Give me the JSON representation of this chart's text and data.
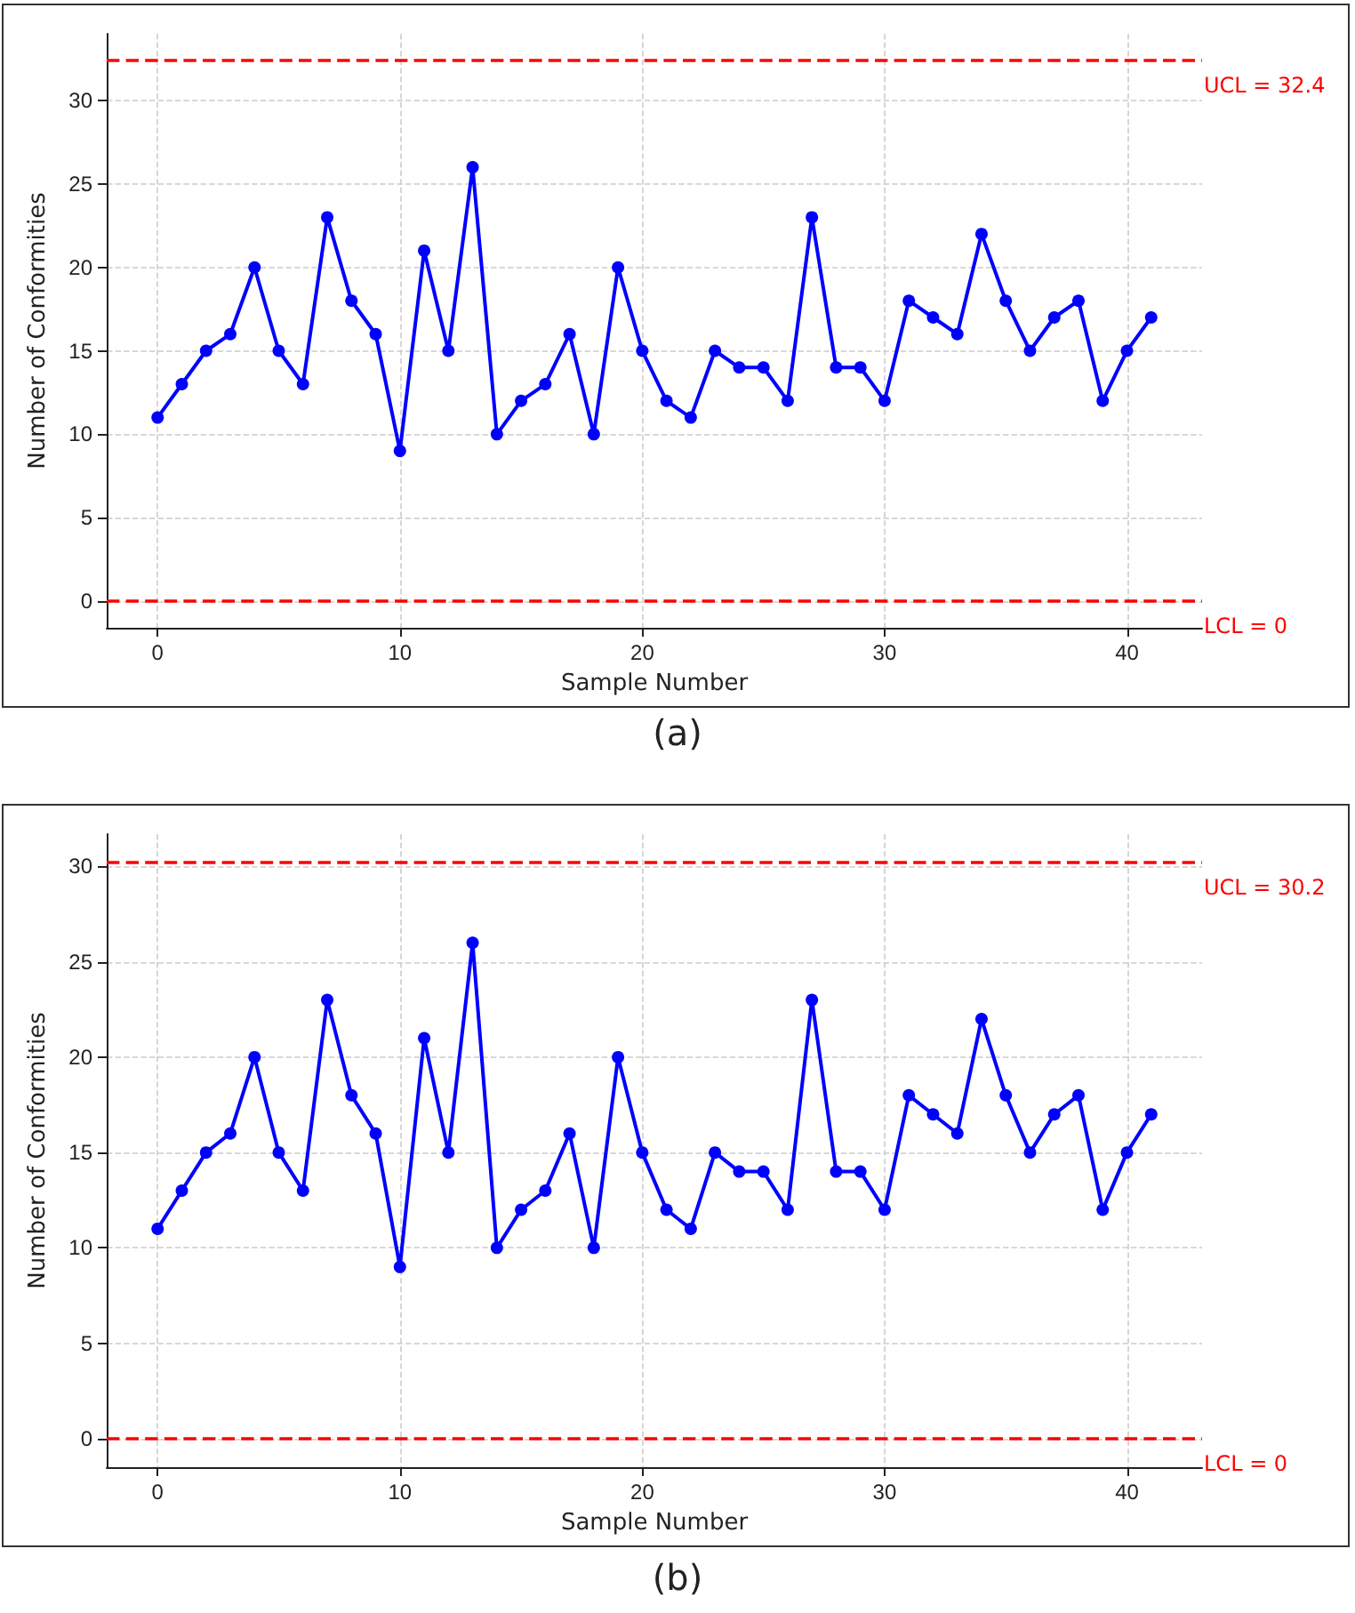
{
  "chart_data": [
    {
      "type": "line",
      "xlabel": "Sample Number",
      "ylabel": "Number of Conformities",
      "annotations": [
        "(a)"
      ],
      "x": [
        0,
        1,
        2,
        3,
        4,
        5,
        6,
        7,
        8,
        9,
        10,
        11,
        12,
        13,
        14,
        15,
        16,
        17,
        18,
        19,
        20,
        21,
        22,
        23,
        24,
        25,
        26,
        27,
        28,
        29,
        30,
        31,
        32,
        33,
        34,
        35,
        36,
        37,
        38,
        39,
        40,
        41
      ],
      "series": [
        {
          "color": "#0000ff",
          "values": [
            11,
            13,
            15,
            16,
            20,
            15,
            13,
            23,
            18,
            16,
            9,
            21,
            15,
            26,
            10,
            12,
            13,
            16,
            10,
            20,
            15,
            12,
            11,
            15,
            14,
            14,
            12,
            23,
            14,
            14,
            12,
            18,
            17,
            16,
            22,
            18,
            15,
            17,
            18,
            12,
            15,
            17
          ]
        }
      ],
      "xlim": [
        -2.1,
        43.1
      ],
      "xticks": [
        0,
        10,
        20,
        30,
        40
      ],
      "ylim": [
        -1.6,
        34
      ],
      "yticks": [
        0,
        5,
        10,
        15,
        20,
        25,
        30
      ],
      "ref_lines": [
        {
          "axis": "y",
          "value": 32.4,
          "label": "UCL = 32.4",
          "color": "#ff0000",
          "line_style": "dashed"
        },
        {
          "axis": "y",
          "value": 0,
          "label": "LCL = 0",
          "color": "#ff0000",
          "line_style": "dashed"
        }
      ],
      "grid": true,
      "marker": "circle",
      "line_style": "solid"
    },
    {
      "type": "line",
      "xlabel": "Sample Number",
      "ylabel": "Number of Conformities",
      "annotations": [
        "(b)"
      ],
      "x": [
        0,
        1,
        2,
        3,
        4,
        5,
        6,
        7,
        8,
        9,
        10,
        11,
        12,
        13,
        14,
        15,
        16,
        17,
        18,
        19,
        20,
        21,
        22,
        23,
        24,
        25,
        26,
        27,
        28,
        29,
        30,
        31,
        32,
        33,
        34,
        35,
        36,
        37,
        38,
        39,
        40,
        41
      ],
      "series": [
        {
          "color": "#0000ff",
          "values": [
            11,
            13,
            15,
            16,
            20,
            15,
            13,
            23,
            18,
            16,
            9,
            21,
            15,
            26,
            10,
            12,
            13,
            16,
            10,
            20,
            15,
            12,
            11,
            15,
            14,
            14,
            12,
            23,
            14,
            14,
            12,
            18,
            17,
            16,
            22,
            18,
            15,
            17,
            18,
            12,
            15,
            17
          ]
        }
      ],
      "xlim": [
        -2.1,
        43.1
      ],
      "xticks": [
        0,
        10,
        20,
        30,
        40
      ],
      "ylim": [
        -1.5,
        31.7
      ],
      "yticks": [
        0,
        5,
        10,
        15,
        20,
        25,
        30
      ],
      "ref_lines": [
        {
          "axis": "y",
          "value": 30.2,
          "label": "UCL = 30.2",
          "color": "#ff0000",
          "line_style": "dashed"
        },
        {
          "axis": "y",
          "value": 0,
          "label": "LCL = 0",
          "color": "#ff0000",
          "line_style": "dashed"
        }
      ],
      "grid": true,
      "marker": "circle",
      "line_style": "solid"
    }
  ]
}
